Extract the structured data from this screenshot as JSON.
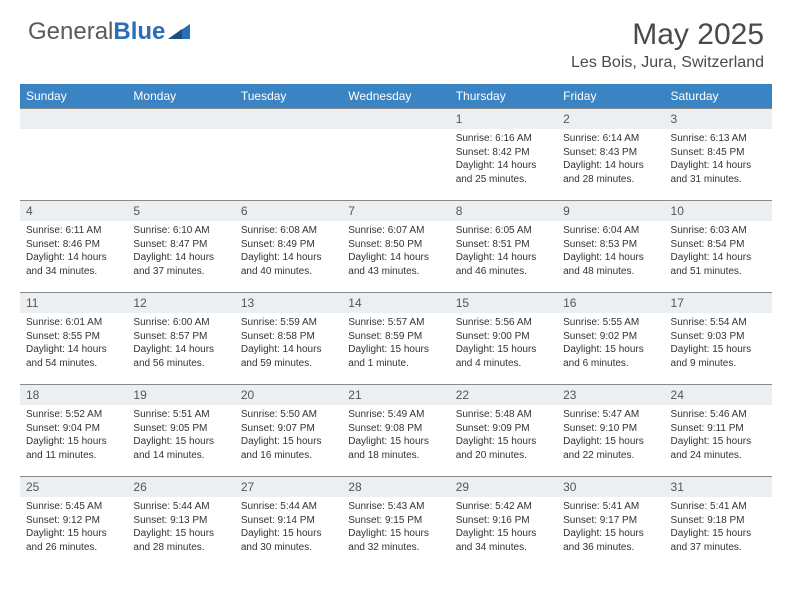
{
  "brand": {
    "name1": "General",
    "name2": "Blue"
  },
  "title": "May 2025",
  "location": "Les Bois, Jura, Switzerland",
  "colors": {
    "header_bg": "#3b84c4",
    "header_fg": "#ffffff",
    "daynum_bg": "#eceff1",
    "daynum_fg": "#555555",
    "border": "#8a8a8a",
    "text": "#333333",
    "title": "#4a4a4a",
    "brand_gray": "#5a5a5a",
    "brand_blue": "#2a6fb5"
  },
  "weekdays": [
    "Sunday",
    "Monday",
    "Tuesday",
    "Wednesday",
    "Thursday",
    "Friday",
    "Saturday"
  ],
  "first_weekday_index": 4,
  "days": [
    {
      "n": 1,
      "sunrise": "6:16 AM",
      "sunset": "8:42 PM",
      "daylight": "14 hours and 25 minutes."
    },
    {
      "n": 2,
      "sunrise": "6:14 AM",
      "sunset": "8:43 PM",
      "daylight": "14 hours and 28 minutes."
    },
    {
      "n": 3,
      "sunrise": "6:13 AM",
      "sunset": "8:45 PM",
      "daylight": "14 hours and 31 minutes."
    },
    {
      "n": 4,
      "sunrise": "6:11 AM",
      "sunset": "8:46 PM",
      "daylight": "14 hours and 34 minutes."
    },
    {
      "n": 5,
      "sunrise": "6:10 AM",
      "sunset": "8:47 PM",
      "daylight": "14 hours and 37 minutes."
    },
    {
      "n": 6,
      "sunrise": "6:08 AM",
      "sunset": "8:49 PM",
      "daylight": "14 hours and 40 minutes."
    },
    {
      "n": 7,
      "sunrise": "6:07 AM",
      "sunset": "8:50 PM",
      "daylight": "14 hours and 43 minutes."
    },
    {
      "n": 8,
      "sunrise": "6:05 AM",
      "sunset": "8:51 PM",
      "daylight": "14 hours and 46 minutes."
    },
    {
      "n": 9,
      "sunrise": "6:04 AM",
      "sunset": "8:53 PM",
      "daylight": "14 hours and 48 minutes."
    },
    {
      "n": 10,
      "sunrise": "6:03 AM",
      "sunset": "8:54 PM",
      "daylight": "14 hours and 51 minutes."
    },
    {
      "n": 11,
      "sunrise": "6:01 AM",
      "sunset": "8:55 PM",
      "daylight": "14 hours and 54 minutes."
    },
    {
      "n": 12,
      "sunrise": "6:00 AM",
      "sunset": "8:57 PM",
      "daylight": "14 hours and 56 minutes."
    },
    {
      "n": 13,
      "sunrise": "5:59 AM",
      "sunset": "8:58 PM",
      "daylight": "14 hours and 59 minutes."
    },
    {
      "n": 14,
      "sunrise": "5:57 AM",
      "sunset": "8:59 PM",
      "daylight": "15 hours and 1 minute."
    },
    {
      "n": 15,
      "sunrise": "5:56 AM",
      "sunset": "9:00 PM",
      "daylight": "15 hours and 4 minutes."
    },
    {
      "n": 16,
      "sunrise": "5:55 AM",
      "sunset": "9:02 PM",
      "daylight": "15 hours and 6 minutes."
    },
    {
      "n": 17,
      "sunrise": "5:54 AM",
      "sunset": "9:03 PM",
      "daylight": "15 hours and 9 minutes."
    },
    {
      "n": 18,
      "sunrise": "5:52 AM",
      "sunset": "9:04 PM",
      "daylight": "15 hours and 11 minutes."
    },
    {
      "n": 19,
      "sunrise": "5:51 AM",
      "sunset": "9:05 PM",
      "daylight": "15 hours and 14 minutes."
    },
    {
      "n": 20,
      "sunrise": "5:50 AM",
      "sunset": "9:07 PM",
      "daylight": "15 hours and 16 minutes."
    },
    {
      "n": 21,
      "sunrise": "5:49 AM",
      "sunset": "9:08 PM",
      "daylight": "15 hours and 18 minutes."
    },
    {
      "n": 22,
      "sunrise": "5:48 AM",
      "sunset": "9:09 PM",
      "daylight": "15 hours and 20 minutes."
    },
    {
      "n": 23,
      "sunrise": "5:47 AM",
      "sunset": "9:10 PM",
      "daylight": "15 hours and 22 minutes."
    },
    {
      "n": 24,
      "sunrise": "5:46 AM",
      "sunset": "9:11 PM",
      "daylight": "15 hours and 24 minutes."
    },
    {
      "n": 25,
      "sunrise": "5:45 AM",
      "sunset": "9:12 PM",
      "daylight": "15 hours and 26 minutes."
    },
    {
      "n": 26,
      "sunrise": "5:44 AM",
      "sunset": "9:13 PM",
      "daylight": "15 hours and 28 minutes."
    },
    {
      "n": 27,
      "sunrise": "5:44 AM",
      "sunset": "9:14 PM",
      "daylight": "15 hours and 30 minutes."
    },
    {
      "n": 28,
      "sunrise": "5:43 AM",
      "sunset": "9:15 PM",
      "daylight": "15 hours and 32 minutes."
    },
    {
      "n": 29,
      "sunrise": "5:42 AM",
      "sunset": "9:16 PM",
      "daylight": "15 hours and 34 minutes."
    },
    {
      "n": 30,
      "sunrise": "5:41 AM",
      "sunset": "9:17 PM",
      "daylight": "15 hours and 36 minutes."
    },
    {
      "n": 31,
      "sunrise": "5:41 AM",
      "sunset": "9:18 PM",
      "daylight": "15 hours and 37 minutes."
    }
  ],
  "labels": {
    "sunrise": "Sunrise: ",
    "sunset": "Sunset: ",
    "daylight": "Daylight: "
  }
}
